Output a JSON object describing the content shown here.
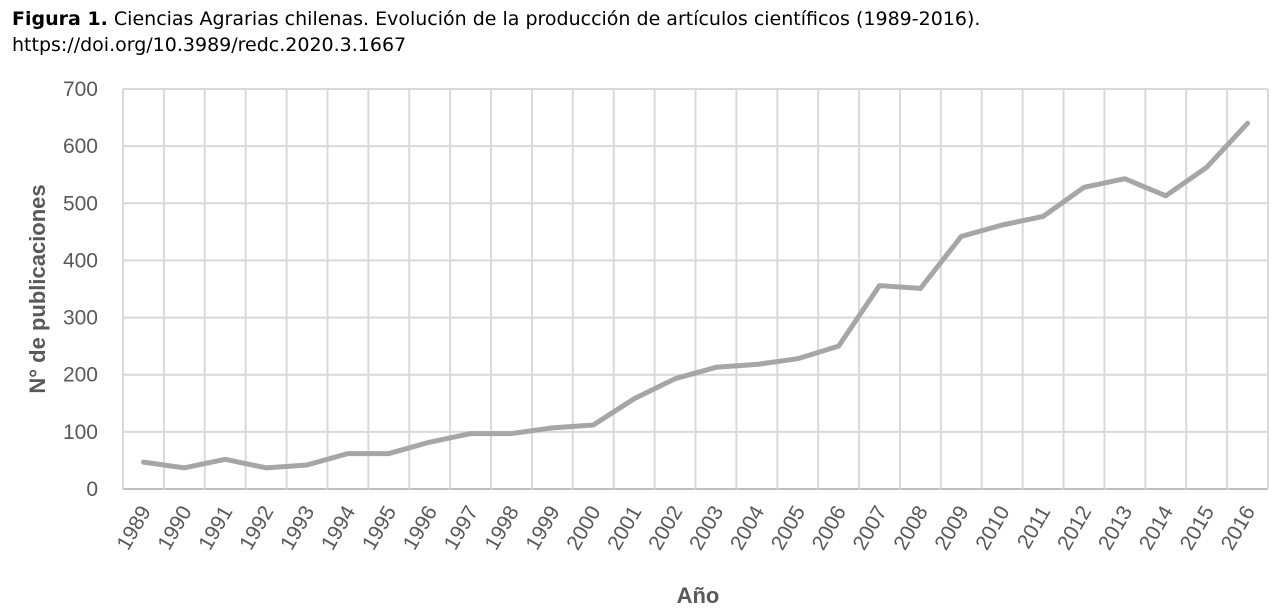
{
  "caption": {
    "lead": "Figura 1.",
    "text": " Ciencias Agrarias chilenas. Evolución de la producción de artículos científicos (1989-2016).",
    "doi": "https://doi.org/10.3989/redc.2020.3.1667"
  },
  "chart_data": {
    "type": "line",
    "title": "",
    "xlabel": "Año",
    "ylabel": "N° de publicaciones",
    "ylim": [
      0,
      700
    ],
    "yticks": [
      0,
      100,
      200,
      300,
      400,
      500,
      600,
      700
    ],
    "grid": true,
    "legend": "none",
    "line_color": "#a6a6a6",
    "categories": [
      "1989",
      "1990",
      "1991",
      "1992",
      "1993",
      "1994",
      "1995",
      "1996",
      "1997",
      "1998",
      "1999",
      "2000",
      "2001",
      "2002",
      "2003",
      "2004",
      "2005",
      "2006",
      "2007",
      "2008",
      "2009",
      "2010",
      "2011",
      "2012",
      "2013",
      "2014",
      "2015",
      "2016"
    ],
    "series": [
      {
        "values": [
          47,
          37,
          52,
          37,
          42,
          62,
          62,
          82,
          97,
          97,
          107,
          112,
          158,
          193,
          213,
          218,
          228,
          250,
          356,
          351,
          442,
          462,
          477,
          528,
          543,
          513,
          563,
          640
        ]
      }
    ]
  }
}
